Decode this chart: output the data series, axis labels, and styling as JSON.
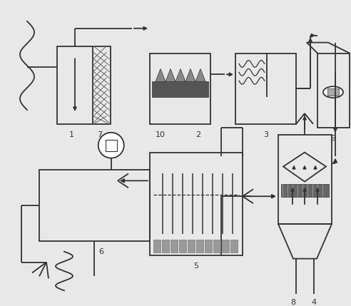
{
  "bg_color": "#e8e8e8",
  "line_color": "#333333",
  "lw": 1.3,
  "fig_w": 4.92,
  "fig_h": 4.29,
  "dpi": 100
}
